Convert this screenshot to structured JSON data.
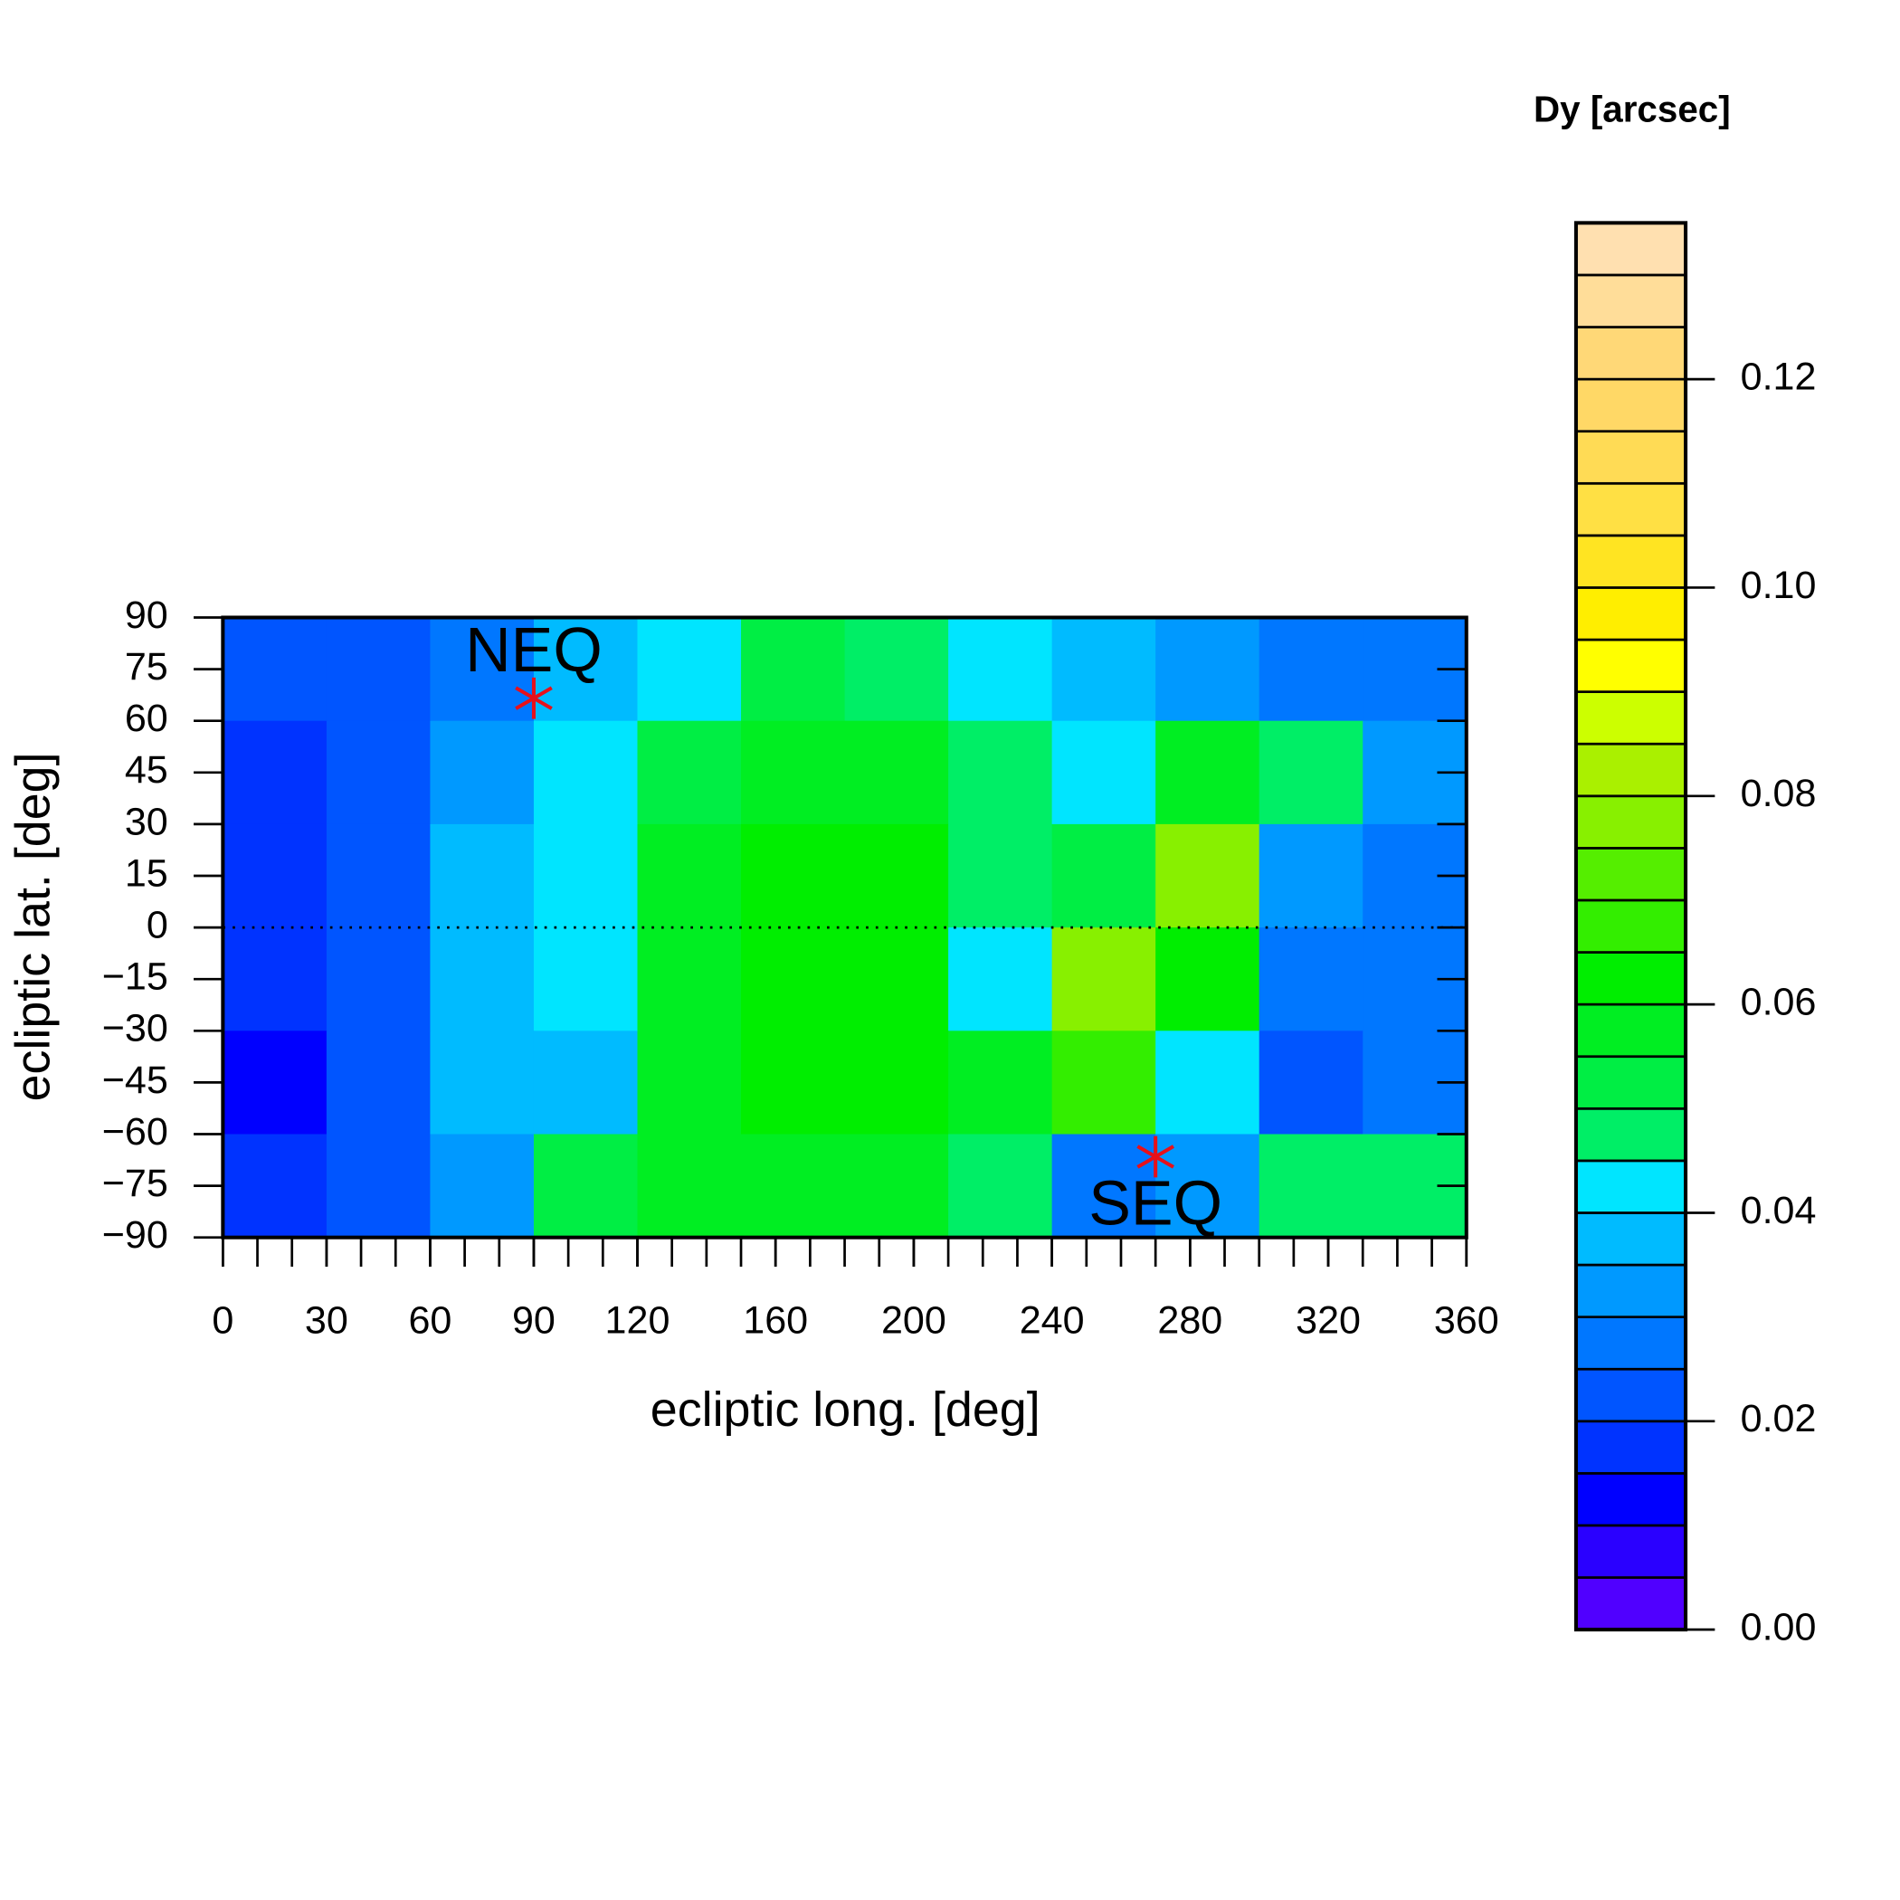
{
  "chart_data": {
    "type": "contour",
    "title": "Dy [arcsec]",
    "x_label": "ecliptic long. [deg]",
    "y_label": "ecliptic lat. [deg]",
    "x": [
      15,
      45,
      75,
      105,
      135,
      165,
      195,
      225,
      255,
      285,
      315,
      345
    ],
    "y": [
      75,
      45,
      15,
      -15,
      -45,
      -75
    ],
    "z": [
      [
        0.02,
        0.02,
        0.025,
        0.035,
        0.04,
        0.05,
        0.045,
        0.04,
        0.035,
        0.03,
        0.025,
        0.025
      ],
      [
        0.015,
        0.02,
        0.03,
        0.04,
        0.05,
        0.055,
        0.055,
        0.045,
        0.04,
        0.055,
        0.045,
        0.03
      ],
      [
        0.015,
        0.02,
        0.035,
        0.04,
        0.055,
        0.06,
        0.06,
        0.045,
        0.05,
        0.075,
        0.03,
        0.025
      ],
      [
        0.015,
        0.02,
        0.035,
        0.04,
        0.055,
        0.06,
        0.06,
        0.04,
        0.075,
        0.06,
        0.025,
        0.025
      ],
      [
        0.01,
        0.02,
        0.035,
        0.035,
        0.055,
        0.06,
        0.06,
        0.055,
        0.065,
        0.04,
        0.02,
        0.025
      ],
      [
        0.015,
        0.02,
        0.03,
        0.05,
        0.055,
        0.055,
        0.055,
        0.045,
        0.025,
        0.03,
        0.045,
        0.045
      ]
    ],
    "xlim": [
      0,
      360
    ],
    "ylim": [
      -90,
      90
    ],
    "xticks": [
      0,
      30,
      60,
      90,
      120,
      160,
      200,
      240,
      280,
      320,
      360
    ],
    "xminorticks": [
      0,
      10,
      20,
      30,
      40,
      50,
      60,
      70,
      80,
      90,
      100,
      110,
      120,
      130,
      140,
      150,
      160,
      170,
      180,
      190,
      200,
      210,
      220,
      230,
      240,
      250,
      260,
      270,
      280,
      290,
      300,
      310,
      320,
      330,
      340,
      350,
      360
    ],
    "yticks": [
      90,
      75,
      60,
      45,
      30,
      15,
      0,
      {
        "value": -15,
        "label": "−15"
      },
      {
        "value": -30,
        "label": "−30"
      },
      {
        "value": -45,
        "label": "−45"
      },
      {
        "value": -60,
        "label": "−60"
      },
      {
        "value": -75,
        "label": "−75"
      },
      {
        "value": -90,
        "label": "−90"
      }
    ],
    "zlim": [
      0,
      0.135
    ],
    "levels": [
      0,
      0.005,
      0.01,
      0.015,
      0.02,
      0.025,
      0.03,
      0.035,
      0.04,
      0.045,
      0.05,
      0.055,
      0.06,
      0.065,
      0.07,
      0.075,
      0.08,
      0.085,
      0.09,
      0.095,
      0.1,
      0.105,
      0.11,
      0.115,
      0.12,
      0.125,
      0.13,
      0.135
    ],
    "colors": [
      "#5000ff",
      "#2a00ff",
      "#0000ff",
      "#0033ff",
      "#0055ff",
      "#0077ff",
      "#0099ff",
      "#00bbff",
      "#00e5ff",
      "#00ee66",
      "#00ee44",
      "#00ee22",
      "#00ee00",
      "#33ee00",
      "#55ee00",
      "#88f000",
      "#aaf000",
      "#ccff00",
      "#ffff00",
      "#ffee00",
      "#ffe422",
      "#ffe044",
      "#ffdb55",
      "#ffd866",
      "#ffd877",
      "#ffdd99",
      "#ffe0b0"
    ],
    "zticks": [
      {
        "value": 0,
        "label": "0.00"
      },
      {
        "value": 0.02,
        "label": "0.02"
      },
      {
        "value": 0.04,
        "label": "0.04"
      },
      {
        "value": 0.06,
        "label": "0.06"
      },
      {
        "value": 0.08,
        "label": "0.08"
      },
      {
        "value": 0.1,
        "label": "0.10"
      },
      {
        "value": 0.12,
        "label": "0.12"
      }
    ],
    "annotations": [
      {
        "text": "NEQ",
        "x": 90,
        "y": 66.56,
        "color": "#e8101a"
      },
      {
        "text": "SEQ",
        "x": 270,
        "y": -66.56,
        "color": "#e8101a"
      }
    ]
  }
}
